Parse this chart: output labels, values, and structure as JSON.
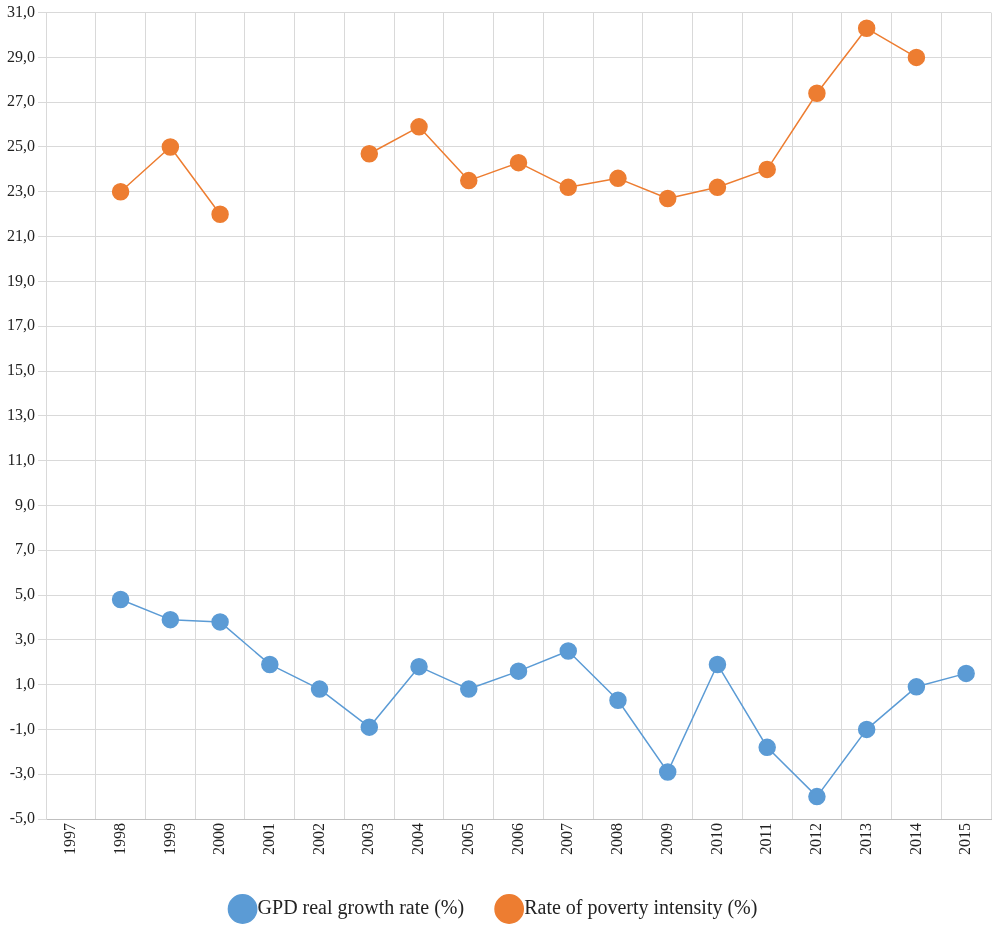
{
  "chart_data": {
    "type": "line",
    "categories": [
      "1997",
      "1998",
      "1999",
      "2000",
      "2001",
      "2002",
      "2003",
      "2004",
      "2005",
      "2006",
      "2007",
      "2008",
      "2009",
      "2010",
      "2011",
      "2012",
      "2013",
      "2014",
      "2015"
    ],
    "series": [
      {
        "name": "GPD real growth rate (%)",
        "color": "#5b9bd5",
        "values": [
          null,
          4.8,
          3.9,
          3.8,
          1.9,
          0.8,
          -0.9,
          1.8,
          0.8,
          1.6,
          2.5,
          0.3,
          -2.9,
          1.9,
          -1.8,
          -4.0,
          -1.0,
          0.9,
          1.5
        ]
      },
      {
        "name": "Rate of poverty intensity (%)",
        "color": "#ed7d31",
        "values": [
          null,
          23.0,
          25.0,
          22.0,
          null,
          null,
          24.7,
          25.9,
          23.5,
          24.3,
          23.2,
          23.6,
          22.7,
          23.2,
          24.0,
          27.4,
          30.3,
          29.0,
          null
        ]
      }
    ],
    "ylim": [
      -5,
      31
    ],
    "yticks": [
      {
        "value": -5,
        "label": "-5,0"
      },
      {
        "value": -3,
        "label": "-3,0"
      },
      {
        "value": -1,
        "label": "-1,0"
      },
      {
        "value": 1,
        "label": "1,0"
      },
      {
        "value": 3,
        "label": "3,0"
      },
      {
        "value": 5,
        "label": "5,0"
      },
      {
        "value": 7,
        "label": "7,0"
      },
      {
        "value": 9,
        "label": "9,0"
      },
      {
        "value": 11,
        "label": "11,0"
      },
      {
        "value": 13,
        "label": "13,0"
      },
      {
        "value": 15,
        "label": "15,0"
      },
      {
        "value": 17,
        "label": "17,0"
      },
      {
        "value": 19,
        "label": "19,0"
      },
      {
        "value": 21,
        "label": "21,0"
      },
      {
        "value": 23,
        "label": "23,0"
      },
      {
        "value": 25,
        "label": "25,0"
      },
      {
        "value": 27,
        "label": "27,0"
      },
      {
        "value": 29,
        "label": "29,0"
      },
      {
        "value": 31,
        "label": "31,0"
      }
    ],
    "grid": true,
    "legend": "bottom",
    "marker": "circle",
    "line_style": "solid"
  }
}
